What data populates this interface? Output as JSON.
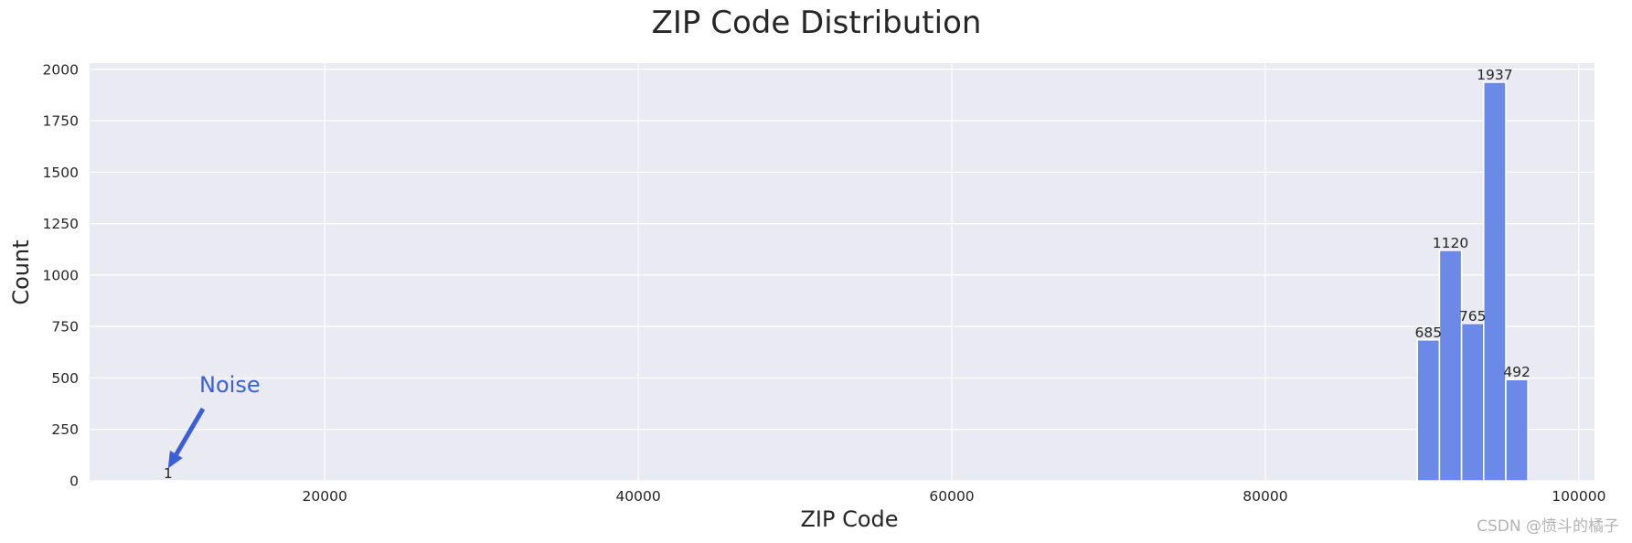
{
  "chart_data": {
    "type": "bar",
    "title": "ZIP Code Distribution",
    "xlabel": "ZIP Code",
    "ylabel": "Count",
    "xlim": [
      5000,
      101000
    ],
    "ylim": [
      0,
      2030
    ],
    "xticks": [
      20000,
      40000,
      60000,
      80000,
      100000
    ],
    "yticks": [
      0,
      250,
      500,
      750,
      1000,
      1250,
      1500,
      1750,
      2000
    ],
    "grid": true,
    "bin_width": 1410,
    "bins": [
      {
        "x": 9300,
        "value": 1,
        "label": "1"
      },
      {
        "x": 89700,
        "value": 685,
        "label": "685"
      },
      {
        "x": 91110,
        "value": 1120,
        "label": "1120"
      },
      {
        "x": 92520,
        "value": 765,
        "label": "765"
      },
      {
        "x": 93930,
        "value": 1937,
        "label": "1937"
      },
      {
        "x": 95340,
        "value": 492,
        "label": "492"
      }
    ],
    "annotation": {
      "text": "Noise",
      "target_x": 10000,
      "target_y": 60,
      "text_x": 12000,
      "text_y": 430
    },
    "colors": {
      "bar": "#6b89e6",
      "bar_edge": "#ffffff",
      "axes_bg": "#eaeaf2",
      "grid": "#ffffff",
      "annotation": "#3a5fd9"
    }
  },
  "watermark": "CSDN @愤斗的橘子"
}
